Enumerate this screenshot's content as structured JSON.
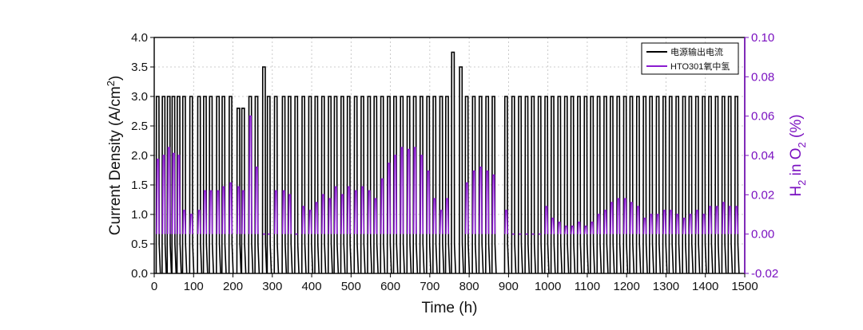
{
  "chart_data": {
    "type": "line",
    "xlabel": "Time (h)",
    "ylabel": "Current Density (A/cm",
    "ylabel_sup": "2",
    "ylabel_end": ")",
    "y2label_a": "H",
    "y2label_sub1": "2",
    "y2label_b": " in O",
    "y2label_sub2": "2",
    "y2label_c": " (%)",
    "xlim": [
      0,
      1500
    ],
    "ylim": [
      0,
      4.0
    ],
    "y2lim": [
      -0.02,
      0.1
    ],
    "x_ticks": [
      "0",
      "100",
      "200",
      "300",
      "400",
      "500",
      "600",
      "700",
      "800",
      "900",
      "1000",
      "1100",
      "1200",
      "1300",
      "1400",
      "1500"
    ],
    "y_ticks": [
      "0.0",
      "0.5",
      "1.0",
      "1.5",
      "2.0",
      "2.5",
      "3.0",
      "3.5",
      "4.0"
    ],
    "y2_ticks": [
      "-0.02",
      "0.00",
      "0.02",
      "0.04",
      "0.06",
      "0.08",
      "0.10"
    ],
    "grid": true,
    "legend_position": "top-right",
    "colors": {
      "current": "#000000",
      "h2": "#8a1bd0",
      "axis_right": "#7a10c0"
    },
    "series": [
      {
        "name": "电源输出电流",
        "axis": "left",
        "cycle_starts_h": [
          5,
          20,
          33,
          45,
          58,
          72,
          90,
          110,
          125,
          140,
          158,
          172,
          190,
          210,
          222,
          240,
          256,
          275,
          287,
          305,
          325,
          340,
          357,
          375,
          392,
          408,
          425,
          442,
          457,
          474,
          490,
          508,
          525,
          542,
          558,
          575,
          592,
          608,
          625,
          642,
          658,
          675,
          692,
          708,
          725,
          740,
          755,
          775,
          790,
          808,
          825,
          842,
          858,
          890,
          908,
          925,
          942,
          958,
          975,
          992,
          1008,
          1025,
          1042,
          1058,
          1075,
          1092,
          1108,
          1125,
          1142,
          1158,
          1175,
          1192,
          1208,
          1225,
          1242,
          1258,
          1275,
          1292,
          1308,
          1325,
          1342,
          1358,
          1375,
          1392,
          1408,
          1425,
          1442,
          1458,
          1475
        ],
        "peaks_A_cm2": [
          3.0,
          3.0,
          3.0,
          3.0,
          3.0,
          3.0,
          3.0,
          3.0,
          3.0,
          3.0,
          3.0,
          3.0,
          3.0,
          2.8,
          2.8,
          3.0,
          3.0,
          3.5,
          3.0,
          3.0,
          3.0,
          3.0,
          3.0,
          3.0,
          3.0,
          3.0,
          3.0,
          3.0,
          3.0,
          3.0,
          3.0,
          3.0,
          3.0,
          3.0,
          3.0,
          3.0,
          3.0,
          3.0,
          3.0,
          3.0,
          3.0,
          3.0,
          3.0,
          3.0,
          3.0,
          3.0,
          3.75,
          3.5,
          3.0,
          3.0,
          3.0,
          3.0,
          3.0,
          3.0,
          3.0,
          3.0,
          3.0,
          3.0,
          3.0,
          3.0,
          3.0,
          3.0,
          3.0,
          3.0,
          3.0,
          3.0,
          3.0,
          3.0,
          3.0,
          3.0,
          3.0,
          3.0,
          3.0,
          3.0,
          3.0,
          3.0,
          3.0,
          3.0,
          3.0,
          3.0,
          3.0,
          3.0,
          3.0,
          3.0,
          3.0,
          3.0,
          3.0,
          3.0,
          3.0
        ],
        "baseline_A_cm2": 0.0,
        "low_level_A_cm2": 0.5
      },
      {
        "name": "HTO301氧中氢",
        "axis": "right",
        "cycle_starts_h": [
          5,
          20,
          33,
          45,
          58,
          72,
          90,
          110,
          125,
          140,
          158,
          172,
          190,
          210,
          222,
          240,
          256,
          275,
          287,
          305,
          325,
          340,
          357,
          375,
          392,
          408,
          425,
          442,
          457,
          474,
          490,
          508,
          525,
          542,
          558,
          575,
          592,
          608,
          625,
          642,
          658,
          675,
          692,
          708,
          725,
          740,
          790,
          808,
          825,
          842,
          858,
          890,
          908,
          925,
          942,
          958,
          975,
          992,
          1008,
          1025,
          1042,
          1058,
          1075,
          1092,
          1108,
          1125,
          1142,
          1158,
          1175,
          1192,
          1208,
          1225,
          1242,
          1258,
          1275,
          1292,
          1308,
          1325,
          1342,
          1358,
          1375,
          1392,
          1408,
          1425,
          1442,
          1458,
          1475
        ],
        "peaks_pct": [
          0.038,
          0.04,
          0.044,
          0.041,
          0.04,
          0.012,
          0.01,
          0.012,
          0.022,
          0.022,
          0.022,
          0.024,
          0.026,
          0.024,
          0.022,
          0.06,
          0.034,
          0.0,
          0.0,
          0.022,
          0.022,
          0.02,
          0.0,
          0.014,
          0.012,
          0.016,
          0.02,
          0.018,
          0.024,
          0.02,
          0.024,
          0.022,
          0.024,
          0.022,
          0.018,
          0.028,
          0.036,
          0.04,
          0.044,
          0.043,
          0.044,
          0.04,
          0.032,
          0.018,
          0.012,
          0.018,
          0.026,
          0.032,
          0.034,
          0.032,
          0.03,
          0.012,
          0.0,
          0.0,
          0.0,
          0.0,
          0.0,
          0.014,
          0.008,
          0.006,
          0.004,
          0.004,
          0.006,
          0.004,
          0.006,
          0.01,
          0.012,
          0.016,
          0.018,
          0.018,
          0.016,
          0.014,
          0.008,
          0.01,
          0.01,
          0.012,
          0.012,
          0.01,
          0.008,
          0.01,
          0.012,
          0.01,
          0.014,
          0.014,
          0.016,
          0.014,
          0.014
        ],
        "baseline_pct": 0.0
      }
    ]
  }
}
